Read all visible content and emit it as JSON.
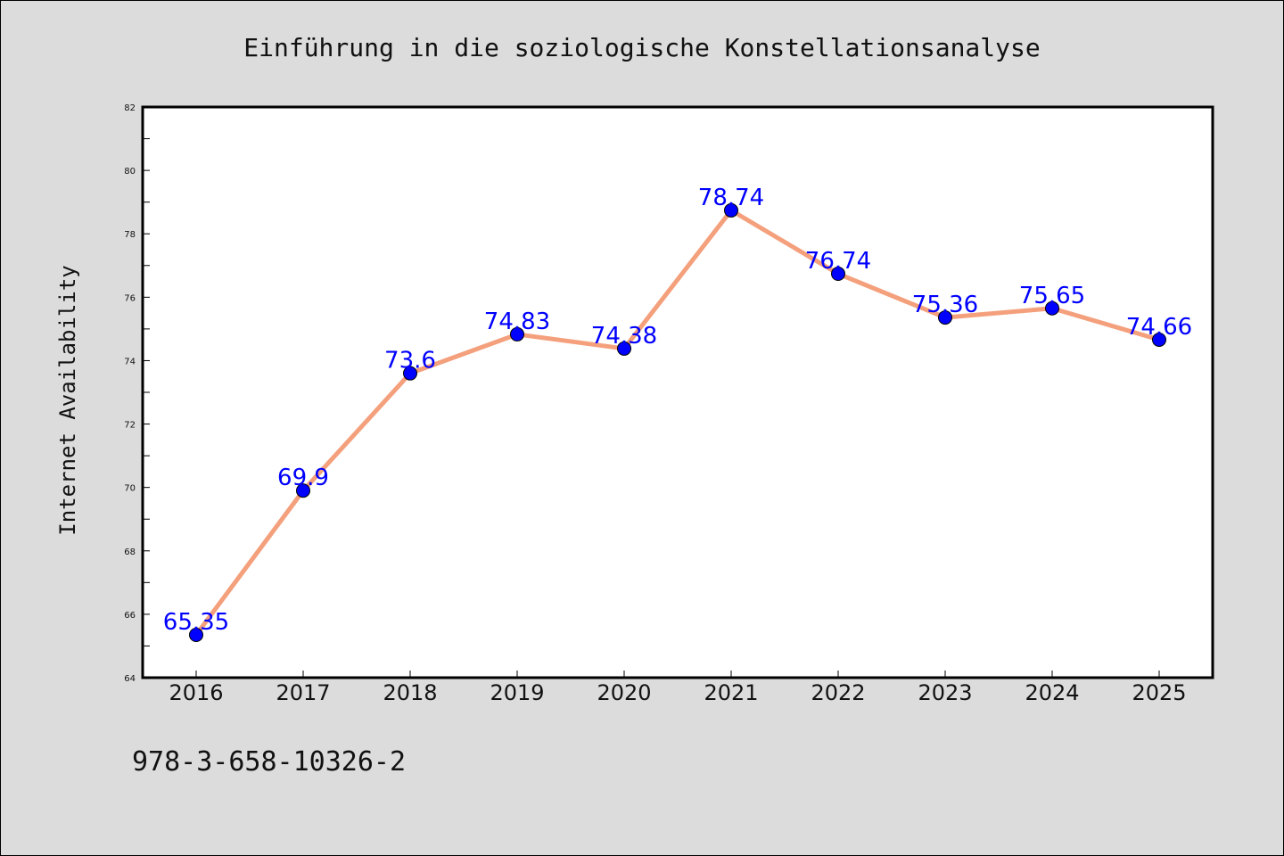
{
  "chart_data": {
    "type": "line",
    "title": "Einführung in die soziologische Konstellationsanalyse",
    "xlabel": "",
    "ylabel": "Internet Availability",
    "categories": [
      "2016",
      "2017",
      "2018",
      "2019",
      "2020",
      "2021",
      "2022",
      "2023",
      "2024",
      "2025"
    ],
    "series": [
      {
        "values": [
          65.35,
          69.9,
          73.6,
          74.83,
          74.38,
          78.74,
          76.74,
          75.36,
          75.65,
          74.66
        ],
        "labels": [
          "65.35",
          "69.9",
          "73.6",
          "74.83",
          "74.38",
          "78.74",
          "76.74",
          "75.36",
          "75.65",
          "74.66"
        ]
      }
    ],
    "ylim": [
      64,
      82
    ],
    "yticks": [
      "64",
      "66",
      "68",
      "70",
      "72",
      "74",
      "76",
      "78",
      "80",
      "82"
    ],
    "grid": false,
    "colors": {
      "line": "#f4a07c",
      "marker": "#0000ff",
      "data_label": "#0000ff",
      "plot_background": "#ffffff",
      "page_background": "#dcdcdc"
    }
  },
  "footer_text": "978-3-658-10326-2"
}
